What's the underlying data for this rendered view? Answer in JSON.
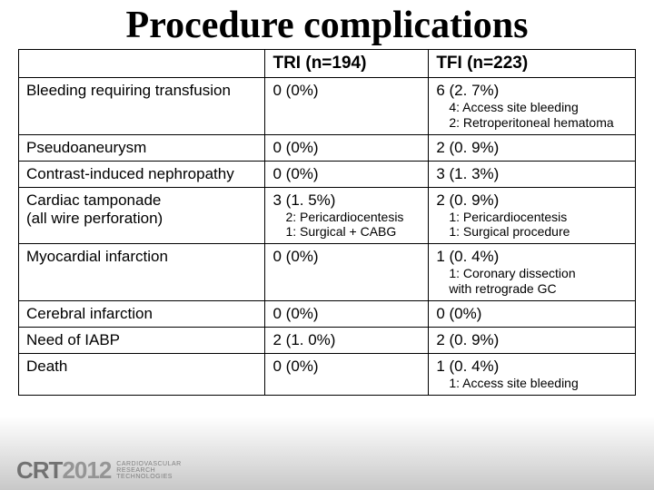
{
  "title": "Procedure complications",
  "columns": {
    "label": "",
    "tri": "TRI (n=194)",
    "tfi": "TFI (n=223)"
  },
  "rows": [
    {
      "label": "Bleeding requiring  transfusion",
      "tri": {
        "main": "0 (0%)"
      },
      "tfi": {
        "main": "6 (2. 7%)",
        "subs": [
          "4: Access site bleeding",
          "2: Retroperitoneal hematoma"
        ]
      }
    },
    {
      "label": "Pseudoaneurysm",
      "tri": {
        "main": "0 (0%)"
      },
      "tfi": {
        "main": "2 (0. 9%)"
      }
    },
    {
      "label": "Contrast-induced  nephropathy",
      "tri": {
        "main": "0 (0%)"
      },
      "tfi": {
        "main": "3 (1. 3%)"
      }
    },
    {
      "label": "Cardiac tamponade\n (all wire perforation)",
      "tri": {
        "main": "3 (1. 5%)",
        "subs": [
          "2: Pericardiocentesis",
          "1: Surgical + CABG"
        ]
      },
      "tfi": {
        "main": "2 (0. 9%)",
        "subs": [
          "1: Pericardiocentesis",
          "1: Surgical procedure"
        ]
      }
    },
    {
      "label": "Myocardial infarction",
      "tri": {
        "main": "0 (0%)"
      },
      "tfi": {
        "main": "1 (0. 4%)",
        "subs": [
          "1: Coronary dissection",
          "    with retrograde GC"
        ]
      }
    },
    {
      "label": "Cerebral infarction",
      "tri": {
        "main": "0 (0%)"
      },
      "tfi": {
        "main": "0 (0%)"
      }
    },
    {
      "label": "Need of IABP",
      "tri": {
        "main": "2 (1. 0%)"
      },
      "tfi": {
        "main": "2 (0. 9%)"
      }
    },
    {
      "label": "Death",
      "tri": {
        "main": "0 (0%)"
      },
      "tfi": {
        "main": "1 (0. 4%)",
        "subs": [
          "1: Access site bleeding"
        ]
      }
    }
  ],
  "footer": {
    "crt": "CRT",
    "year": "2012",
    "sub1": "CARDIOVASCULAR",
    "sub2": "RESEARCH",
    "sub3": "TECHNOLOGIES"
  }
}
